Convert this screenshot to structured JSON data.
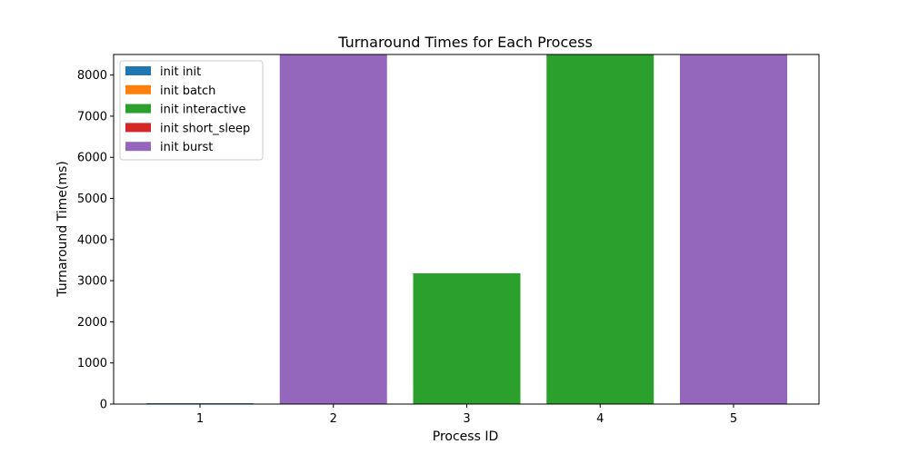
{
  "chart_data": {
    "type": "bar",
    "title": "Turnaround Times for Each Process",
    "xlabel": "Process ID",
    "ylabel": "Turnaround Time(ms)",
    "ylim": [
      0,
      8500
    ],
    "yticks": [
      0,
      1000,
      2000,
      3000,
      4000,
      5000,
      6000,
      7000,
      8000
    ],
    "categories": [
      "1",
      "2",
      "3",
      "4",
      "5"
    ],
    "bars": [
      {
        "category": "1",
        "value": 20,
        "series": "init init"
      },
      {
        "category": "2",
        "value": 8500,
        "series": "init burst"
      },
      {
        "category": "3",
        "value": 3180,
        "series": "init interactive"
      },
      {
        "category": "4",
        "value": 8500,
        "series": "init interactive"
      },
      {
        "category": "5",
        "value": 8500,
        "series": "init burst"
      }
    ],
    "legend": {
      "placement": "top-left",
      "entries": [
        {
          "name": "init init",
          "color": "#1f77b4"
        },
        {
          "name": "init batch",
          "color": "#ff7f0e"
        },
        {
          "name": "init interactive",
          "color": "#2ca02c"
        },
        {
          "name": "init short_sleep",
          "color": "#d62728"
        },
        {
          "name": "init burst",
          "color": "#9467bd"
        }
      ]
    },
    "grid": false
  }
}
